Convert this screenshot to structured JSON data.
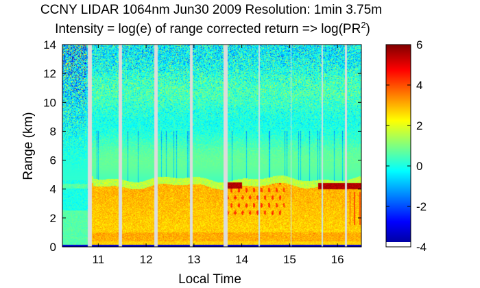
{
  "chart_data": {
    "type": "heatmap",
    "title": "CCNY LIDAR 1064nm Jun30 2009 Resolution: 1min 3.75m",
    "subtitle_prefix": "Intensity = log(e) of range corrected return => log(PR",
    "subtitle_superscript": "2",
    "subtitle_suffix": ")",
    "xlabel": "Local Time",
    "ylabel": "Range (km)",
    "xlim": [
      10.25,
      16.5
    ],
    "ylim": [
      0,
      14
    ],
    "xticks": [
      11,
      12,
      13,
      14,
      15,
      16
    ],
    "yticks": [
      0,
      2,
      4,
      6,
      8,
      10,
      12,
      14
    ],
    "colorbar": {
      "min": -4,
      "max": 6,
      "ticks": [
        -4,
        -2,
        0,
        2,
        4,
        6
      ],
      "colormap": "jet"
    },
    "data_gaps_local_time": [
      [
        10.78,
        10.86
      ],
      [
        11.42,
        11.5
      ],
      [
        12.17,
        12.24
      ],
      [
        12.91,
        12.98
      ],
      [
        13.62,
        13.7
      ],
      [
        16.15,
        16.2
      ]
    ],
    "thin_gaps_local_time": [
      14.36,
      15.03,
      15.68
    ],
    "layers": {
      "surface_layer_km": [
        0,
        0.15
      ],
      "boundary_layer_top_km": 4.2,
      "cloud_layer_km": [
        4.0,
        4.6
      ],
      "boundary_layer_intensity": 3.0,
      "free_troposphere_intensity": 0.5,
      "cloud_intensity": 5.5
    }
  }
}
